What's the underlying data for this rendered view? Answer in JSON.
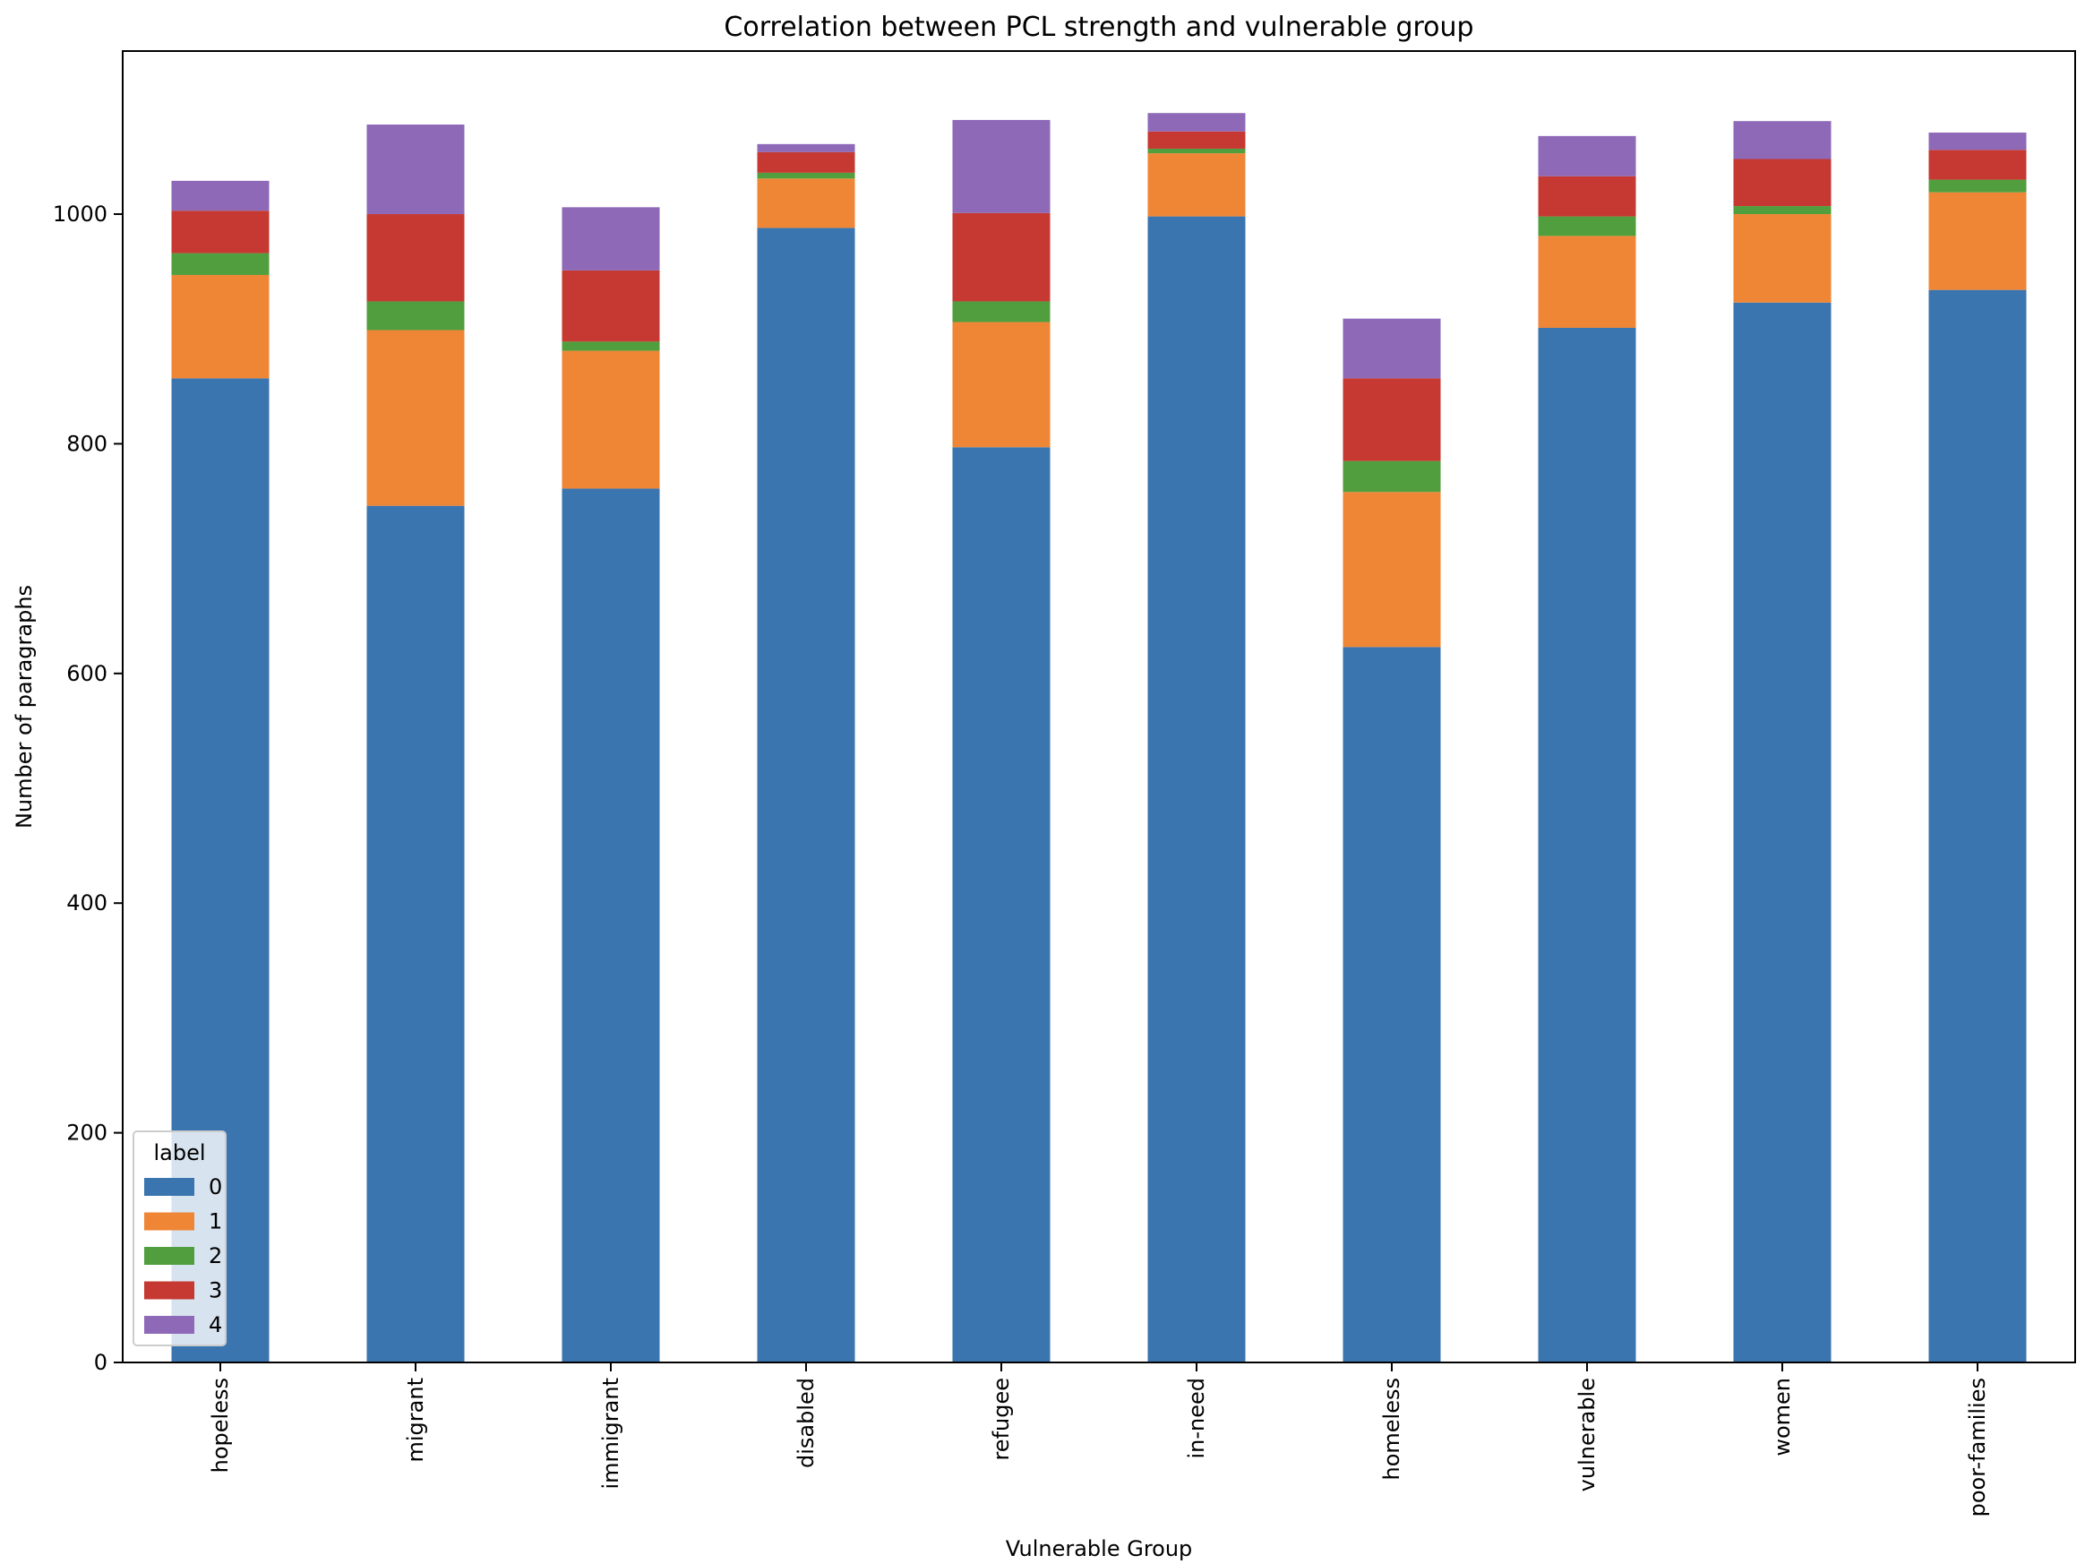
{
  "chart_data": {
    "type": "bar",
    "stacked": true,
    "title": "Correlation between PCL strength and vulnerable group",
    "xlabel": "Vulnerable Group",
    "ylabel": "Number of paragraphs",
    "categories": [
      "hopeless",
      "migrant",
      "immigrant",
      "disabled",
      "refugee",
      "in-need",
      "homeless",
      "vulnerable",
      "women",
      "poor-families"
    ],
    "ylim": [
      0,
      1142
    ],
    "yticks": [
      0,
      200,
      400,
      600,
      800,
      1000
    ],
    "grid": false,
    "legend": {
      "title": "label",
      "position": "lower-left"
    },
    "series": [
      {
        "name": "0",
        "color": "#3a75af",
        "values": [
          857,
          746,
          761,
          988,
          797,
          998,
          623,
          901,
          923,
          934
        ]
      },
      {
        "name": "1",
        "color": "#ef8636",
        "values": [
          90,
          153,
          120,
          43,
          109,
          55,
          135,
          80,
          77,
          85
        ]
      },
      {
        "name": "2",
        "color": "#519e3e",
        "values": [
          19,
          25,
          8,
          5,
          18,
          4,
          27,
          17,
          7,
          11
        ]
      },
      {
        "name": "3",
        "color": "#c53932",
        "values": [
          37,
          76,
          62,
          18,
          77,
          15,
          72,
          35,
          41,
          26
        ]
      },
      {
        "name": "4",
        "color": "#8d69b8",
        "values": [
          26,
          78,
          55,
          7,
          81,
          16,
          52,
          35,
          33,
          15
        ]
      }
    ]
  }
}
